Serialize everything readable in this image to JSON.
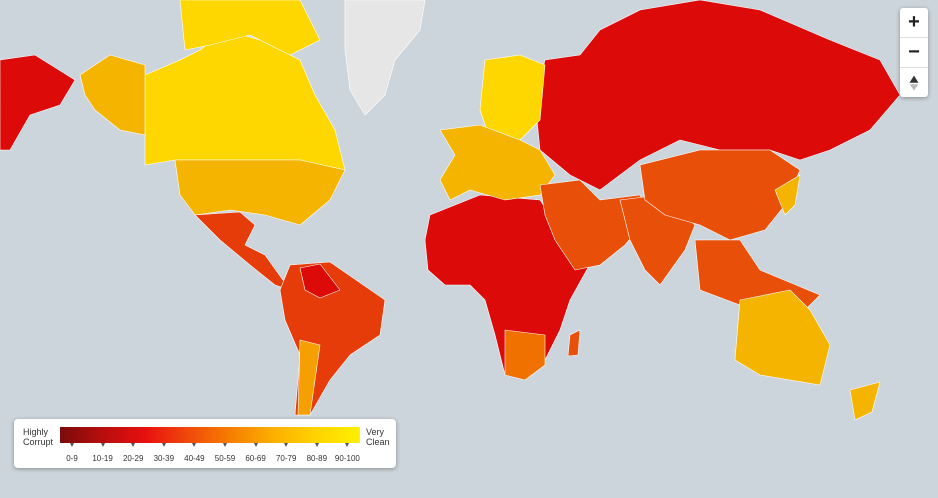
{
  "zoom_controls": {
    "zoom_in": "+",
    "zoom_out": "−"
  },
  "legend": {
    "low_label": [
      "Highly",
      "Corrupt"
    ],
    "high_label": [
      "Very",
      "Clean"
    ],
    "ranges": [
      "0-9",
      "10-19",
      "20-29",
      "30-39",
      "40-49",
      "50-59",
      "60-69",
      "70-79",
      "80-89",
      "90-100"
    ]
  }
}
